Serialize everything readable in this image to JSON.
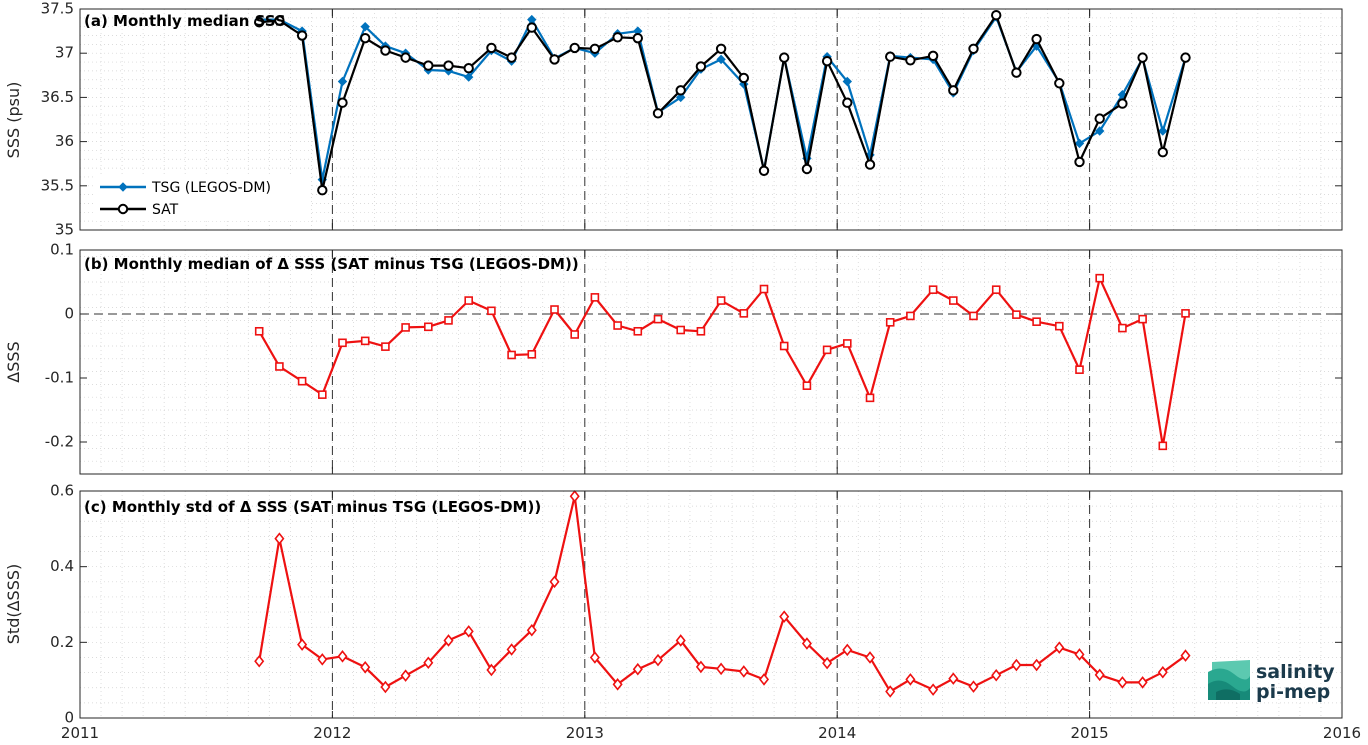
{
  "figure": {
    "logo": {
      "line1": "salinity",
      "line2": "pi-mep"
    },
    "colors": {
      "tsg": "#0072BD",
      "sat": "#000000",
      "delta": "#ee1111",
      "axis": "#262626",
      "grid": "#d0d0d0"
    }
  },
  "chart_data": [
    {
      "type": "line",
      "title": "(a) Monthly median SSS",
      "xlabel": "",
      "ylabel": "SSS (psu)",
      "xlim": [
        2011,
        2016
      ],
      "ylim": [
        35,
        37.5
      ],
      "xticks": [
        "2011",
        "2012",
        "2013",
        "2014",
        "2015",
        "2016"
      ],
      "yticks": [
        "35",
        "35.5",
        "36",
        "36.5",
        "37",
        "37.5"
      ],
      "grid": true,
      "legend": "left",
      "x": [
        2011.71,
        2011.79,
        2011.88,
        2011.96,
        2012.04,
        2012.13,
        2012.21,
        2012.29,
        2012.38,
        2012.46,
        2012.54,
        2012.63,
        2012.71,
        2012.79,
        2012.88,
        2012.96,
        2013.04,
        2013.13,
        2013.21,
        2013.29,
        2013.38,
        2013.46,
        2013.54,
        2013.63,
        2013.71,
        2013.79,
        2013.88,
        2013.96,
        2014.04,
        2014.13,
        2014.21,
        2014.29,
        2014.38,
        2014.46,
        2014.54,
        2014.63,
        2014.71,
        2014.79,
        2014.88,
        2014.96,
        2015.04,
        2015.13,
        2015.21,
        2015.29,
        2015.38
      ],
      "series": [
        {
          "name": "TSG (LEGOS-DM)",
          "marker": "diamond",
          "values": [
            37.38,
            37.38,
            37.25,
            35.57,
            36.68,
            37.3,
            37.08,
            37.0,
            36.81,
            36.8,
            36.73,
            37.03,
            36.91,
            37.38,
            36.94,
            37.06,
            37.0,
            37.22,
            37.25,
            36.33,
            36.5,
            36.82,
            36.93,
            36.65,
            35.68,
            36.95,
            35.81,
            36.96,
            36.68,
            35.85,
            36.97,
            36.95,
            36.93,
            36.55,
            37.03,
            37.41,
            36.79,
            37.08,
            36.67,
            35.98,
            36.12,
            36.53,
            36.94,
            36.12,
            36.95
          ]
        },
        {
          "name": "SAT",
          "marker": "circle",
          "values": [
            37.35,
            37.37,
            37.2,
            35.45,
            36.44,
            37.17,
            37.03,
            36.95,
            36.86,
            36.86,
            36.83,
            37.06,
            36.95,
            37.29,
            36.93,
            37.06,
            37.05,
            37.18,
            37.17,
            36.32,
            36.58,
            36.85,
            37.05,
            36.72,
            35.67,
            36.95,
            35.69,
            36.91,
            36.44,
            35.74,
            36.96,
            36.92,
            36.97,
            36.58,
            37.05,
            37.43,
            36.78,
            37.16,
            36.66,
            35.77,
            36.26,
            36.43,
            36.95,
            35.88,
            36.95
          ]
        }
      ]
    },
    {
      "type": "line",
      "title": "(b) Monthly median of Δ SSS (SAT minus TSG (LEGOS-DM))",
      "xlabel": "",
      "ylabel": "ΔSSS",
      "xlim": [
        2011,
        2016
      ],
      "ylim": [
        -0.25,
        0.1
      ],
      "xticks": [
        "2011",
        "2012",
        "2013",
        "2014",
        "2015",
        "2016"
      ],
      "yticks": [
        "-0.2",
        "-0.1",
        "0",
        "0.1"
      ],
      "grid": true,
      "zero_line": true,
      "x": [
        2011.71,
        2011.79,
        2011.88,
        2011.96,
        2012.04,
        2012.13,
        2012.21,
        2012.29,
        2012.38,
        2012.46,
        2012.54,
        2012.63,
        2012.71,
        2012.79,
        2012.88,
        2012.96,
        2013.04,
        2013.13,
        2013.21,
        2013.29,
        2013.38,
        2013.46,
        2013.54,
        2013.63,
        2013.71,
        2013.79,
        2013.88,
        2013.96,
        2014.04,
        2014.13,
        2014.21,
        2014.29,
        2014.38,
        2014.46,
        2014.54,
        2014.63,
        2014.71,
        2014.79,
        2014.88,
        2014.96,
        2015.04,
        2015.13,
        2015.21,
        2015.29,
        2015.38
      ],
      "series": [
        {
          "name": "",
          "marker": "square",
          "values": [
            -0.027,
            -0.082,
            -0.105,
            -0.126,
            -0.045,
            -0.042,
            -0.051,
            -0.021,
            -0.02,
            -0.01,
            0.021,
            0.005,
            -0.064,
            -0.063,
            0.007,
            -0.032,
            0.026,
            -0.018,
            -0.027,
            -0.008,
            -0.025,
            -0.027,
            0.021,
            0.001,
            0.039,
            -0.05,
            -0.112,
            -0.056,
            -0.046,
            -0.131,
            -0.013,
            -0.003,
            0.038,
            0.021,
            -0.003,
            0.038,
            -0.001,
            -0.012,
            -0.019,
            -0.087,
            0.056,
            -0.022,
            -0.008,
            -0.206,
            0.001
          ]
        }
      ]
    },
    {
      "type": "line",
      "title": "(c) Monthly std of Δ SSS (SAT minus TSG (LEGOS-DM))",
      "xlabel": "",
      "ylabel": "Std(ΔSSS)",
      "xlim": [
        2011,
        2016
      ],
      "ylim": [
        0,
        0.6
      ],
      "xticks": [
        "2011",
        "2012",
        "2013",
        "2014",
        "2015",
        "2016"
      ],
      "yticks": [
        "0",
        "0.2",
        "0.4",
        "0.6"
      ],
      "grid": true,
      "x": [
        2011.71,
        2011.79,
        2011.88,
        2011.96,
        2012.04,
        2012.13,
        2012.21,
        2012.29,
        2012.38,
        2012.46,
        2012.54,
        2012.63,
        2012.71,
        2012.79,
        2012.88,
        2012.96,
        2013.04,
        2013.13,
        2013.21,
        2013.29,
        2013.38,
        2013.46,
        2013.54,
        2013.63,
        2013.71,
        2013.79,
        2013.88,
        2013.96,
        2014.04,
        2014.13,
        2014.21,
        2014.29,
        2014.38,
        2014.46,
        2014.54,
        2014.63,
        2014.71,
        2014.79,
        2014.88,
        2014.96,
        2015.04,
        2015.13,
        2015.21,
        2015.29,
        2015.38
      ],
      "series": [
        {
          "name": "",
          "marker": "diamond-open",
          "values": [
            0.15,
            0.474,
            0.194,
            0.155,
            0.163,
            0.134,
            0.082,
            0.112,
            0.146,
            0.205,
            0.229,
            0.127,
            0.181,
            0.232,
            0.36,
            0.586,
            0.16,
            0.089,
            0.129,
            0.153,
            0.205,
            0.135,
            0.13,
            0.123,
            0.102,
            0.268,
            0.197,
            0.145,
            0.18,
            0.16,
            0.07,
            0.102,
            0.075,
            0.104,
            0.083,
            0.113,
            0.14,
            0.14,
            0.186,
            0.168,
            0.114,
            0.094,
            0.094,
            0.121,
            0.165
          ]
        }
      ]
    }
  ]
}
